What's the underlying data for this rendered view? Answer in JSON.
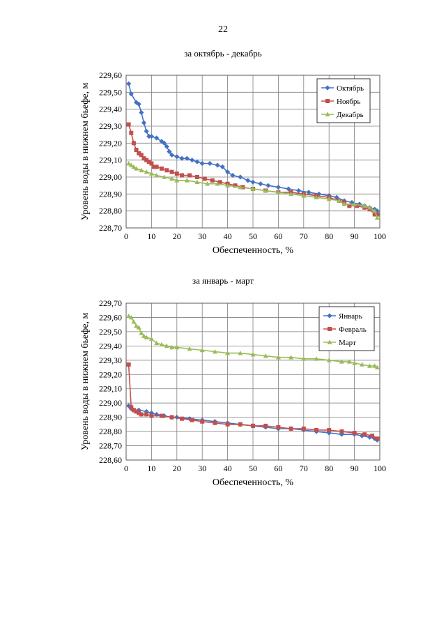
{
  "page_number": "22",
  "chart_data": [
    {
      "type": "line",
      "title": "за октябрь - декабрь",
      "xlabel": "Обеспеченность, %",
      "ylabel": "Уровень воды в нижнем бьефе, м",
      "xlim": [
        0,
        100
      ],
      "ylim": [
        228.7,
        229.6
      ],
      "x_ticks": [
        "0",
        "10",
        "20",
        "30",
        "40",
        "50",
        "60",
        "70",
        "80",
        "90",
        "100"
      ],
      "y_ticks": [
        "228,70",
        "228,80",
        "228,90",
        "229,00",
        "229,10",
        "229,20",
        "229,30",
        "229,40",
        "229,50",
        "229,60"
      ],
      "legend_position": "top-right",
      "series": [
        {
          "name": "Октябрь",
          "color": "#4472C4",
          "marker": "diamond",
          "points": [
            [
              1,
              229.55
            ],
            [
              2,
              229.49
            ],
            [
              4,
              229.44
            ],
            [
              5,
              229.43
            ],
            [
              6,
              229.38
            ],
            [
              7,
              229.32
            ],
            [
              8,
              229.27
            ],
            [
              9,
              229.24
            ],
            [
              10,
              229.24
            ],
            [
              12,
              229.23
            ],
            [
              14,
              229.21
            ],
            [
              15,
              229.2
            ],
            [
              16,
              229.18
            ],
            [
              17,
              229.15
            ],
            [
              18,
              229.13
            ],
            [
              20,
              229.12
            ],
            [
              22,
              229.11
            ],
            [
              24,
              229.11
            ],
            [
              26,
              229.1
            ],
            [
              28,
              229.09
            ],
            [
              30,
              229.08
            ],
            [
              33,
              229.08
            ],
            [
              36,
              229.07
            ],
            [
              38,
              229.06
            ],
            [
              40,
              229.03
            ],
            [
              42,
              229.01
            ],
            [
              45,
              229.0
            ],
            [
              48,
              228.98
            ],
            [
              50,
              228.97
            ],
            [
              53,
              228.96
            ],
            [
              56,
              228.95
            ],
            [
              60,
              228.94
            ],
            [
              64,
              228.93
            ],
            [
              68,
              228.92
            ],
            [
              72,
              228.91
            ],
            [
              76,
              228.9
            ],
            [
              80,
              228.89
            ],
            [
              83,
              228.88
            ],
            [
              86,
              228.86
            ],
            [
              89,
              228.85
            ],
            [
              92,
              228.84
            ],
            [
              94,
              228.83
            ],
            [
              96,
              228.82
            ],
            [
              98,
              228.81
            ],
            [
              99,
              228.8
            ]
          ]
        },
        {
          "name": "Ноябрь",
          "color": "#C0504D",
          "marker": "square",
          "points": [
            [
              1,
              229.31
            ],
            [
              2,
              229.26
            ],
            [
              3,
              229.2
            ],
            [
              4,
              229.16
            ],
            [
              5,
              229.14
            ],
            [
              6,
              229.13
            ],
            [
              7,
              229.11
            ],
            [
              8,
              229.1
            ],
            [
              9,
              229.09
            ],
            [
              10,
              229.08
            ],
            [
              11,
              229.06
            ],
            [
              12,
              229.06
            ],
            [
              14,
              229.05
            ],
            [
              16,
              229.04
            ],
            [
              18,
              229.03
            ],
            [
              20,
              229.02
            ],
            [
              22,
              229.01
            ],
            [
              25,
              229.01
            ],
            [
              28,
              229.0
            ],
            [
              31,
              228.99
            ],
            [
              34,
              228.98
            ],
            [
              37,
              228.97
            ],
            [
              40,
              228.96
            ],
            [
              43,
              228.95
            ],
            [
              46,
              228.94
            ],
            [
              50,
              228.93
            ],
            [
              55,
              228.92
            ],
            [
              60,
              228.91
            ],
            [
              65,
              228.91
            ],
            [
              70,
              228.9
            ],
            [
              75,
              228.89
            ],
            [
              80,
              228.88
            ],
            [
              84,
              228.86
            ],
            [
              86,
              228.85
            ],
            [
              88,
              228.83
            ],
            [
              91,
              228.83
            ],
            [
              94,
              228.82
            ],
            [
              96,
              228.81
            ],
            [
              98,
              228.78
            ],
            [
              99,
              228.78
            ]
          ]
        },
        {
          "name": "Декабрь",
          "color": "#9BBB59",
          "marker": "triangle",
          "points": [
            [
              1,
              229.08
            ],
            [
              2,
              229.07
            ],
            [
              3,
              229.06
            ],
            [
              4,
              229.05
            ],
            [
              6,
              229.04
            ],
            [
              8,
              229.03
            ],
            [
              10,
              229.02
            ],
            [
              12,
              229.01
            ],
            [
              15,
              229.0
            ],
            [
              18,
              228.99
            ],
            [
              20,
              228.98
            ],
            [
              24,
              228.98
            ],
            [
              28,
              228.97
            ],
            [
              32,
              228.96
            ],
            [
              36,
              228.96
            ],
            [
              40,
              228.95
            ],
            [
              45,
              228.94
            ],
            [
              50,
              228.93
            ],
            [
              55,
              228.92
            ],
            [
              60,
              228.91
            ],
            [
              65,
              228.9
            ],
            [
              70,
              228.89
            ],
            [
              75,
              228.88
            ],
            [
              80,
              228.87
            ],
            [
              84,
              228.86
            ],
            [
              86,
              228.84
            ],
            [
              90,
              228.84
            ],
            [
              94,
              228.83
            ],
            [
              96,
              228.82
            ],
            [
              98,
              228.8
            ],
            [
              99,
              228.76
            ]
          ]
        }
      ]
    },
    {
      "type": "line",
      "title": "за январь - март",
      "xlabel": "Обеспеченность, %",
      "ylabel": "Уровень воды в нижнем бьефе, м",
      "xlim": [
        0,
        100
      ],
      "ylim": [
        228.6,
        229.7
      ],
      "x_ticks": [
        "0",
        "10",
        "20",
        "30",
        "40",
        "50",
        "60",
        "70",
        "80",
        "90",
        "100"
      ],
      "y_ticks": [
        "228,60",
        "228,70",
        "228,80",
        "228,90",
        "229,00",
        "229,10",
        "229,20",
        "229,30",
        "229,40",
        "229,50",
        "229,60",
        "229,70"
      ],
      "legend_position": "top-right",
      "series": [
        {
          "name": "Январь",
          "color": "#4472C4",
          "marker": "diamond",
          "points": [
            [
              1,
              228.98
            ],
            [
              2,
              228.96
            ],
            [
              3,
              228.95
            ],
            [
              5,
              228.95
            ],
            [
              8,
              228.94
            ],
            [
              10,
              228.93
            ],
            [
              12,
              228.92
            ],
            [
              15,
              228.91
            ],
            [
              18,
              228.9
            ],
            [
              20,
              228.9
            ],
            [
              25,
              228.89
            ],
            [
              30,
              228.88
            ],
            [
              35,
              228.87
            ],
            [
              40,
              228.86
            ],
            [
              45,
              228.85
            ],
            [
              50,
              228.84
            ],
            [
              55,
              228.83
            ],
            [
              60,
              228.82
            ],
            [
              65,
              228.82
            ],
            [
              70,
              228.81
            ],
            [
              75,
              228.8
            ],
            [
              80,
              228.79
            ],
            [
              85,
              228.78
            ],
            [
              90,
              228.78
            ],
            [
              93,
              228.77
            ],
            [
              96,
              228.76
            ],
            [
              98,
              228.75
            ],
            [
              99,
              228.74
            ]
          ]
        },
        {
          "name": "Февраль",
          "color": "#C0504D",
          "marker": "square",
          "points": [
            [
              1,
              229.27
            ],
            [
              2,
              228.97
            ],
            [
              3,
              228.95
            ],
            [
              4,
              228.94
            ],
            [
              5,
              228.93
            ],
            [
              6,
              228.92
            ],
            [
              8,
              228.92
            ],
            [
              10,
              228.91
            ],
            [
              14,
              228.91
            ],
            [
              18,
              228.9
            ],
            [
              22,
              228.89
            ],
            [
              26,
              228.88
            ],
            [
              30,
              228.87
            ],
            [
              35,
              228.86
            ],
            [
              40,
              228.85
            ],
            [
              45,
              228.85
            ],
            [
              50,
              228.84
            ],
            [
              55,
              228.84
            ],
            [
              60,
              228.83
            ],
            [
              65,
              228.82
            ],
            [
              70,
              228.82
            ],
            [
              75,
              228.81
            ],
            [
              80,
              228.81
            ],
            [
              85,
              228.8
            ],
            [
              90,
              228.79
            ],
            [
              94,
              228.78
            ],
            [
              97,
              228.77
            ],
            [
              99,
              228.75
            ]
          ]
        },
        {
          "name": "Март",
          "color": "#9BBB59",
          "marker": "triangle",
          "points": [
            [
              1,
              229.61
            ],
            [
              2,
              229.6
            ],
            [
              3,
              229.57
            ],
            [
              4,
              229.54
            ],
            [
              5,
              229.53
            ],
            [
              6,
              229.49
            ],
            [
              7,
              229.47
            ],
            [
              8,
              229.46
            ],
            [
              10,
              229.45
            ],
            [
              12,
              229.42
            ],
            [
              14,
              229.41
            ],
            [
              16,
              229.4
            ],
            [
              18,
              229.39
            ],
            [
              20,
              229.39
            ],
            [
              25,
              229.38
            ],
            [
              30,
              229.37
            ],
            [
              35,
              229.36
            ],
            [
              40,
              229.35
            ],
            [
              45,
              229.35
            ],
            [
              50,
              229.34
            ],
            [
              55,
              229.33
            ],
            [
              60,
              229.32
            ],
            [
              65,
              229.32
            ],
            [
              70,
              229.31
            ],
            [
              75,
              229.31
            ],
            [
              80,
              229.3
            ],
            [
              85,
              229.29
            ],
            [
              88,
              229.29
            ],
            [
              90,
              229.28
            ],
            [
              93,
              229.27
            ],
            [
              96,
              229.26
            ],
            [
              98,
              229.26
            ],
            [
              99,
              229.25
            ]
          ]
        }
      ]
    }
  ]
}
